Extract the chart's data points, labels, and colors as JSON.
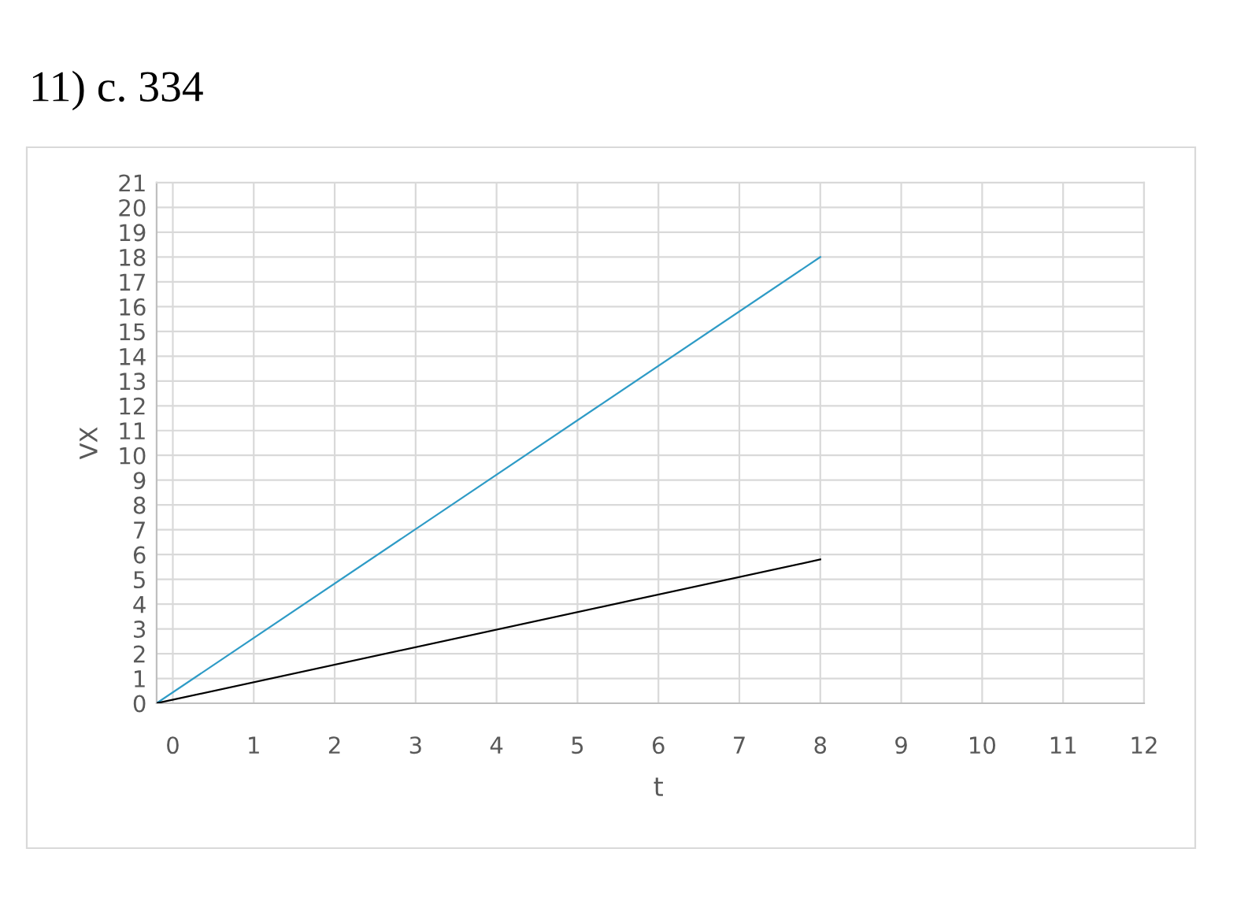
{
  "chart_data": {
    "type": "line",
    "title": "11) с. 334",
    "xlabel": "t",
    "ylabel": "VX",
    "x": [
      -0.2,
      8
    ],
    "series": [
      {
        "color": "#2e9bc6",
        "values": [
          0,
          18
        ]
      },
      {
        "color": "#000000",
        "values": [
          0,
          5.8
        ]
      }
    ],
    "xlim": [
      -0.2,
      12
    ],
    "xticks": [
      0,
      1,
      2,
      3,
      4,
      5,
      6,
      7,
      8,
      9,
      10,
      11,
      12
    ],
    "ylim": [
      0,
      21
    ],
    "yticks": [
      0,
      1,
      2,
      3,
      4,
      5,
      6,
      7,
      8,
      9,
      10,
      11,
      12,
      13,
      14,
      15,
      16,
      17,
      18,
      19,
      20,
      21
    ],
    "grid": true
  }
}
